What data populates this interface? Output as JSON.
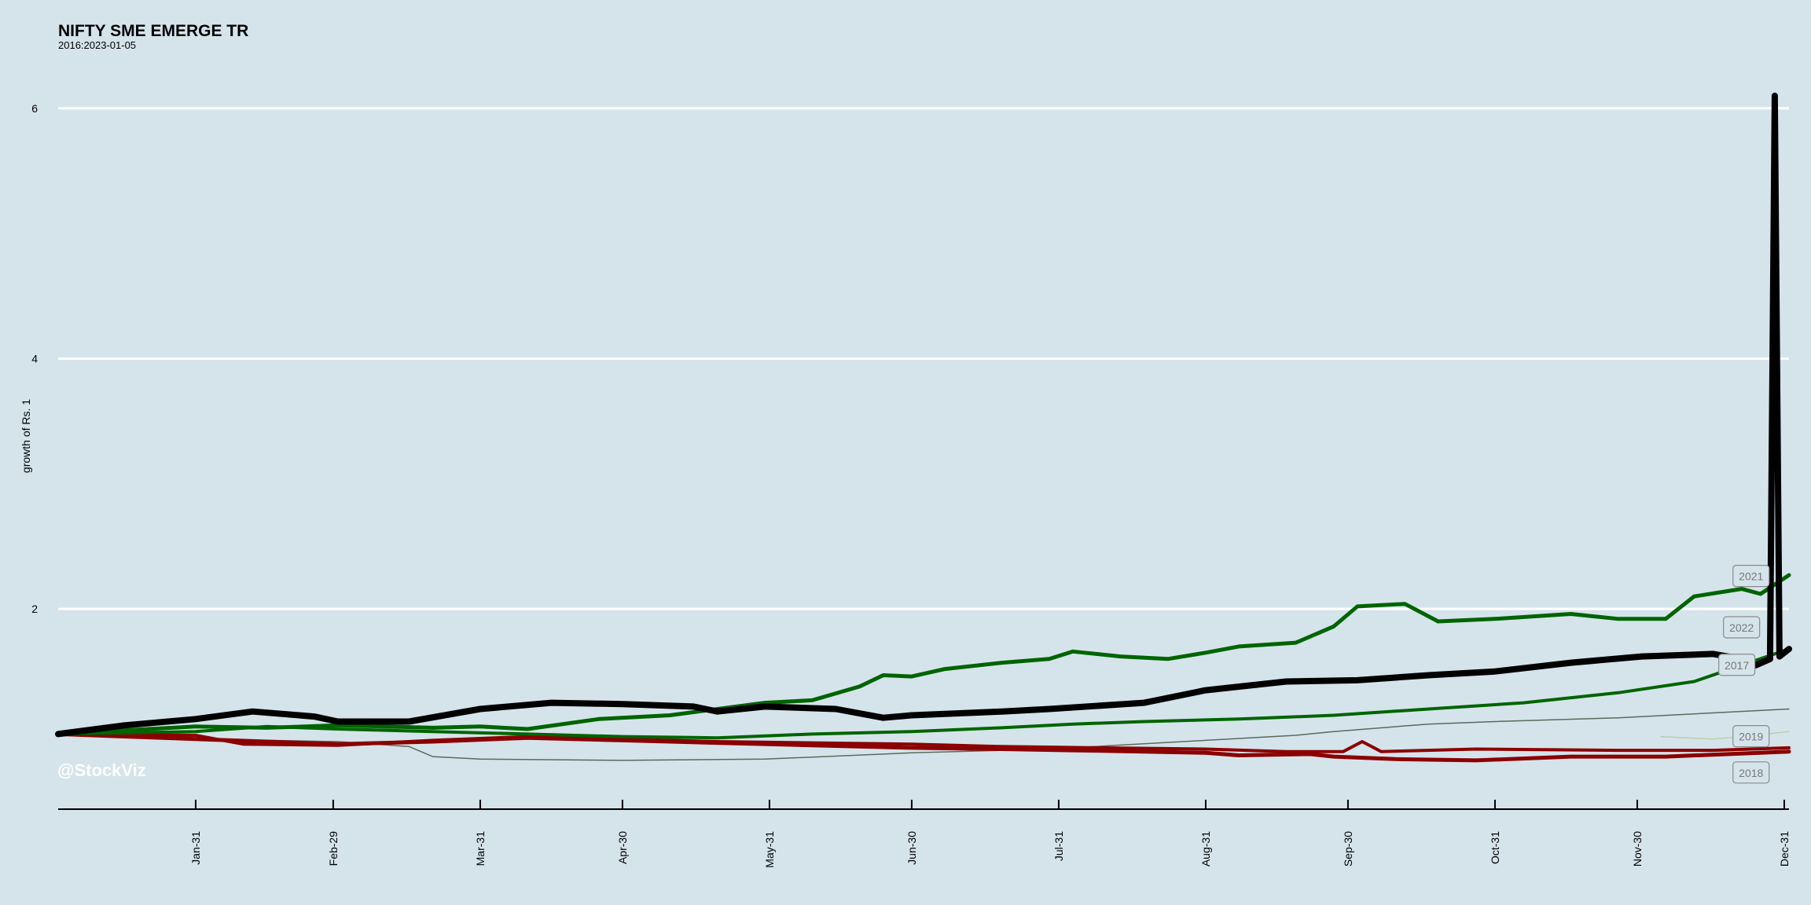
{
  "chart_data": {
    "type": "line",
    "title": "NIFTY SME EMERGE TR",
    "subtitle": "2016:2023-01-05",
    "xlabel": "",
    "ylabel": "growth of Rs. 1",
    "ylim": [
      0.4,
      6.3
    ],
    "yticks": [
      2,
      4,
      6
    ],
    "x_ticks": [
      "Jan-31",
      "Feb-29",
      "Mar-31",
      "Apr-30",
      "May-31",
      "Jun-30",
      "Jul-31",
      "Aug-31",
      "Sep-30",
      "Oct-31",
      "Nov-30",
      "Dec-31"
    ],
    "x_tick_days": [
      30,
      59,
      90,
      120,
      151,
      181,
      212,
      243,
      273,
      304,
      334,
      365
    ],
    "x_range_days": [
      1,
      366
    ],
    "grid": "horizontal",
    "watermark": "@StockViz",
    "series": [
      {
        "name": "2021",
        "color": "#006400",
        "width": 5,
        "points": [
          [
            1,
            1.0
          ],
          [
            20,
            1.04
          ],
          [
            30,
            1.06
          ],
          [
            45,
            1.05
          ],
          [
            60,
            1.07
          ],
          [
            80,
            1.05
          ],
          [
            90,
            1.06
          ],
          [
            100,
            1.04
          ],
          [
            115,
            1.12
          ],
          [
            130,
            1.15
          ],
          [
            150,
            1.25
          ],
          [
            160,
            1.27
          ],
          [
            170,
            1.38
          ],
          [
            175,
            1.47
          ],
          [
            181,
            1.46
          ],
          [
            188,
            1.52
          ],
          [
            200,
            1.57
          ],
          [
            210,
            1.6
          ],
          [
            215,
            1.66
          ],
          [
            225,
            1.62
          ],
          [
            235,
            1.6
          ],
          [
            243,
            1.65
          ],
          [
            250,
            1.7
          ],
          [
            262,
            1.73
          ],
          [
            270,
            1.86
          ],
          [
            275,
            2.02
          ],
          [
            285,
            2.04
          ],
          [
            292,
            1.9
          ],
          [
            304,
            1.92
          ],
          [
            320,
            1.96
          ],
          [
            330,
            1.92
          ],
          [
            340,
            1.92
          ],
          [
            346,
            2.1
          ],
          [
            356,
            2.16
          ],
          [
            360,
            2.12
          ],
          [
            366,
            2.27
          ]
        ]
      },
      {
        "name": "2022",
        "color": "#000000",
        "width": 8,
        "points": [
          [
            1,
            1.0
          ],
          [
            15,
            1.07
          ],
          [
            30,
            1.12
          ],
          [
            42,
            1.18
          ],
          [
            55,
            1.14
          ],
          [
            60,
            1.1
          ],
          [
            75,
            1.1
          ],
          [
            90,
            1.2
          ],
          [
            105,
            1.25
          ],
          [
            120,
            1.24
          ],
          [
            135,
            1.22
          ],
          [
            140,
            1.18
          ],
          [
            150,
            1.22
          ],
          [
            165,
            1.2
          ],
          [
            175,
            1.13
          ],
          [
            181,
            1.15
          ],
          [
            200,
            1.18
          ],
          [
            210,
            1.2
          ],
          [
            230,
            1.25
          ],
          [
            243,
            1.35
          ],
          [
            260,
            1.42
          ],
          [
            275,
            1.43
          ],
          [
            290,
            1.47
          ],
          [
            304,
            1.5
          ],
          [
            320,
            1.57
          ],
          [
            335,
            1.62
          ],
          [
            350,
            1.64
          ],
          [
            356,
            1.6
          ],
          [
            359,
            1.55
          ],
          [
            362,
            1.6
          ],
          [
            363,
            6.1
          ],
          [
            364,
            1.62
          ],
          [
            366,
            1.68
          ]
        ]
      },
      {
        "name": "2017",
        "color": "#006400",
        "width": 4,
        "points": [
          [
            1,
            1.0
          ],
          [
            30,
            1.02
          ],
          [
            45,
            1.06
          ],
          [
            60,
            1.04
          ],
          [
            80,
            1.02
          ],
          [
            100,
            1.0
          ],
          [
            120,
            0.98
          ],
          [
            140,
            0.97
          ],
          [
            160,
            1.0
          ],
          [
            181,
            1.02
          ],
          [
            200,
            1.05
          ],
          [
            215,
            1.08
          ],
          [
            230,
            1.1
          ],
          [
            250,
            1.12
          ],
          [
            270,
            1.15
          ],
          [
            290,
            1.2
          ],
          [
            310,
            1.25
          ],
          [
            330,
            1.33
          ],
          [
            346,
            1.42
          ],
          [
            356,
            1.55
          ],
          [
            366,
            1.68
          ]
        ]
      },
      {
        "name": "2019",
        "color": "#5a6a5a",
        "width": 1.5,
        "points": [
          [
            1,
            1.0
          ],
          [
            30,
            0.96
          ],
          [
            60,
            0.94
          ],
          [
            75,
            0.9
          ],
          [
            80,
            0.82
          ],
          [
            90,
            0.8
          ],
          [
            120,
            0.79
          ],
          [
            150,
            0.8
          ],
          [
            181,
            0.85
          ],
          [
            210,
            0.88
          ],
          [
            243,
            0.95
          ],
          [
            262,
            0.99
          ],
          [
            270,
            1.02
          ],
          [
            290,
            1.08
          ],
          [
            304,
            1.1
          ],
          [
            330,
            1.13
          ],
          [
            366,
            1.2
          ]
        ]
      },
      {
        "name": "2018",
        "color": "#8b0000",
        "width": 5,
        "points": [
          [
            1,
            1.0
          ],
          [
            30,
            0.96
          ],
          [
            45,
            0.94
          ],
          [
            60,
            0.92
          ],
          [
            80,
            0.94
          ],
          [
            100,
            0.97
          ],
          [
            120,
            0.95
          ],
          [
            140,
            0.93
          ],
          [
            160,
            0.91
          ],
          [
            181,
            0.89
          ],
          [
            200,
            0.88
          ],
          [
            215,
            0.87
          ],
          [
            230,
            0.86
          ],
          [
            243,
            0.85
          ],
          [
            250,
            0.83
          ],
          [
            265,
            0.84
          ],
          [
            270,
            0.82
          ],
          [
            283,
            0.8
          ],
          [
            300,
            0.79
          ],
          [
            320,
            0.82
          ],
          [
            340,
            0.82
          ],
          [
            366,
            0.86
          ]
        ]
      },
      {
        "name": "",
        "color": "#8b0000",
        "width": 4,
        "points": [
          [
            1,
            1.0
          ],
          [
            30,
            0.99
          ],
          [
            40,
            0.92
          ],
          [
            60,
            0.91
          ],
          [
            80,
            0.95
          ],
          [
            100,
            0.98
          ],
          [
            120,
            0.96
          ],
          [
            140,
            0.94
          ],
          [
            160,
            0.93
          ],
          [
            181,
            0.92
          ],
          [
            200,
            0.9
          ],
          [
            220,
            0.89
          ],
          [
            243,
            0.88
          ],
          [
            260,
            0.86
          ],
          [
            272,
            0.86
          ],
          [
            276,
            0.94
          ],
          [
            280,
            0.86
          ],
          [
            300,
            0.88
          ],
          [
            330,
            0.87
          ],
          [
            350,
            0.87
          ],
          [
            366,
            0.89
          ]
        ]
      },
      {
        "name": "",
        "color": "#b8d0b0",
        "width": 1.5,
        "points": [
          [
            339,
            0.98
          ],
          [
            350,
            0.96
          ],
          [
            356,
            0.98
          ],
          [
            366,
            1.02
          ]
        ]
      }
    ],
    "labels": [
      {
        "text": "2021",
        "x": 358,
        "y": 2.26
      },
      {
        "text": "2022",
        "x": 356,
        "y": 1.85
      },
      {
        "text": "2017",
        "x": 355,
        "y": 1.55
      },
      {
        "text": "2019",
        "x": 358,
        "y": 0.98
      },
      {
        "text": "2018",
        "x": 358,
        "y": 0.69
      }
    ]
  }
}
